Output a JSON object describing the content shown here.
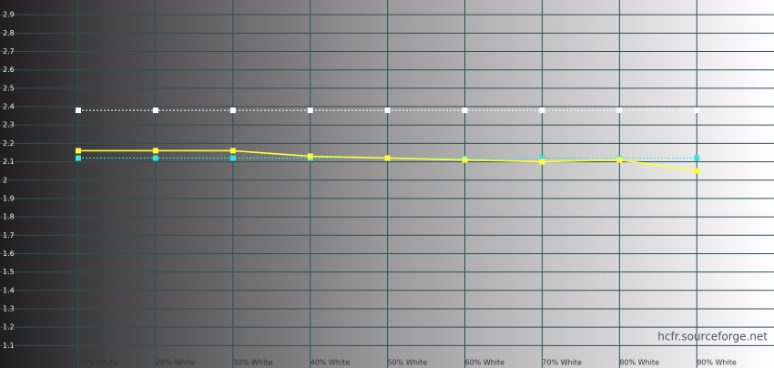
{
  "chart_data": {
    "type": "line",
    "categories": [
      "10% White",
      "20% White",
      "30% White",
      "40% White",
      "50% White",
      "60% White",
      "70% White",
      "80% White",
      "90% White"
    ],
    "series": [
      {
        "color": "#ffffff",
        "dashed": true,
        "values": [
          2.38,
          2.38,
          2.38,
          2.38,
          2.38,
          2.38,
          2.38,
          2.38,
          2.38
        ]
      },
      {
        "color": "#33e6e6",
        "dashed": true,
        "values": [
          2.12,
          2.12,
          2.12,
          2.12,
          2.12,
          2.12,
          2.12,
          2.12,
          2.12
        ]
      },
      {
        "color": "#ffff33",
        "dashed": false,
        "values": [
          2.16,
          2.16,
          2.16,
          2.13,
          2.12,
          2.11,
          2.1,
          2.11,
          2.05
        ]
      }
    ],
    "ylim": [
      1,
      3
    ],
    "yticks": [
      1.1,
      1.2,
      1.3,
      1.4,
      1.5,
      1.6,
      1.7,
      1.8,
      1.9,
      2,
      2.1,
      2.2,
      2.3,
      2.4,
      2.5,
      2.6,
      2.7,
      2.8,
      2.9
    ],
    "grid": true,
    "watermark": "hcfr.sourceforge.net"
  }
}
